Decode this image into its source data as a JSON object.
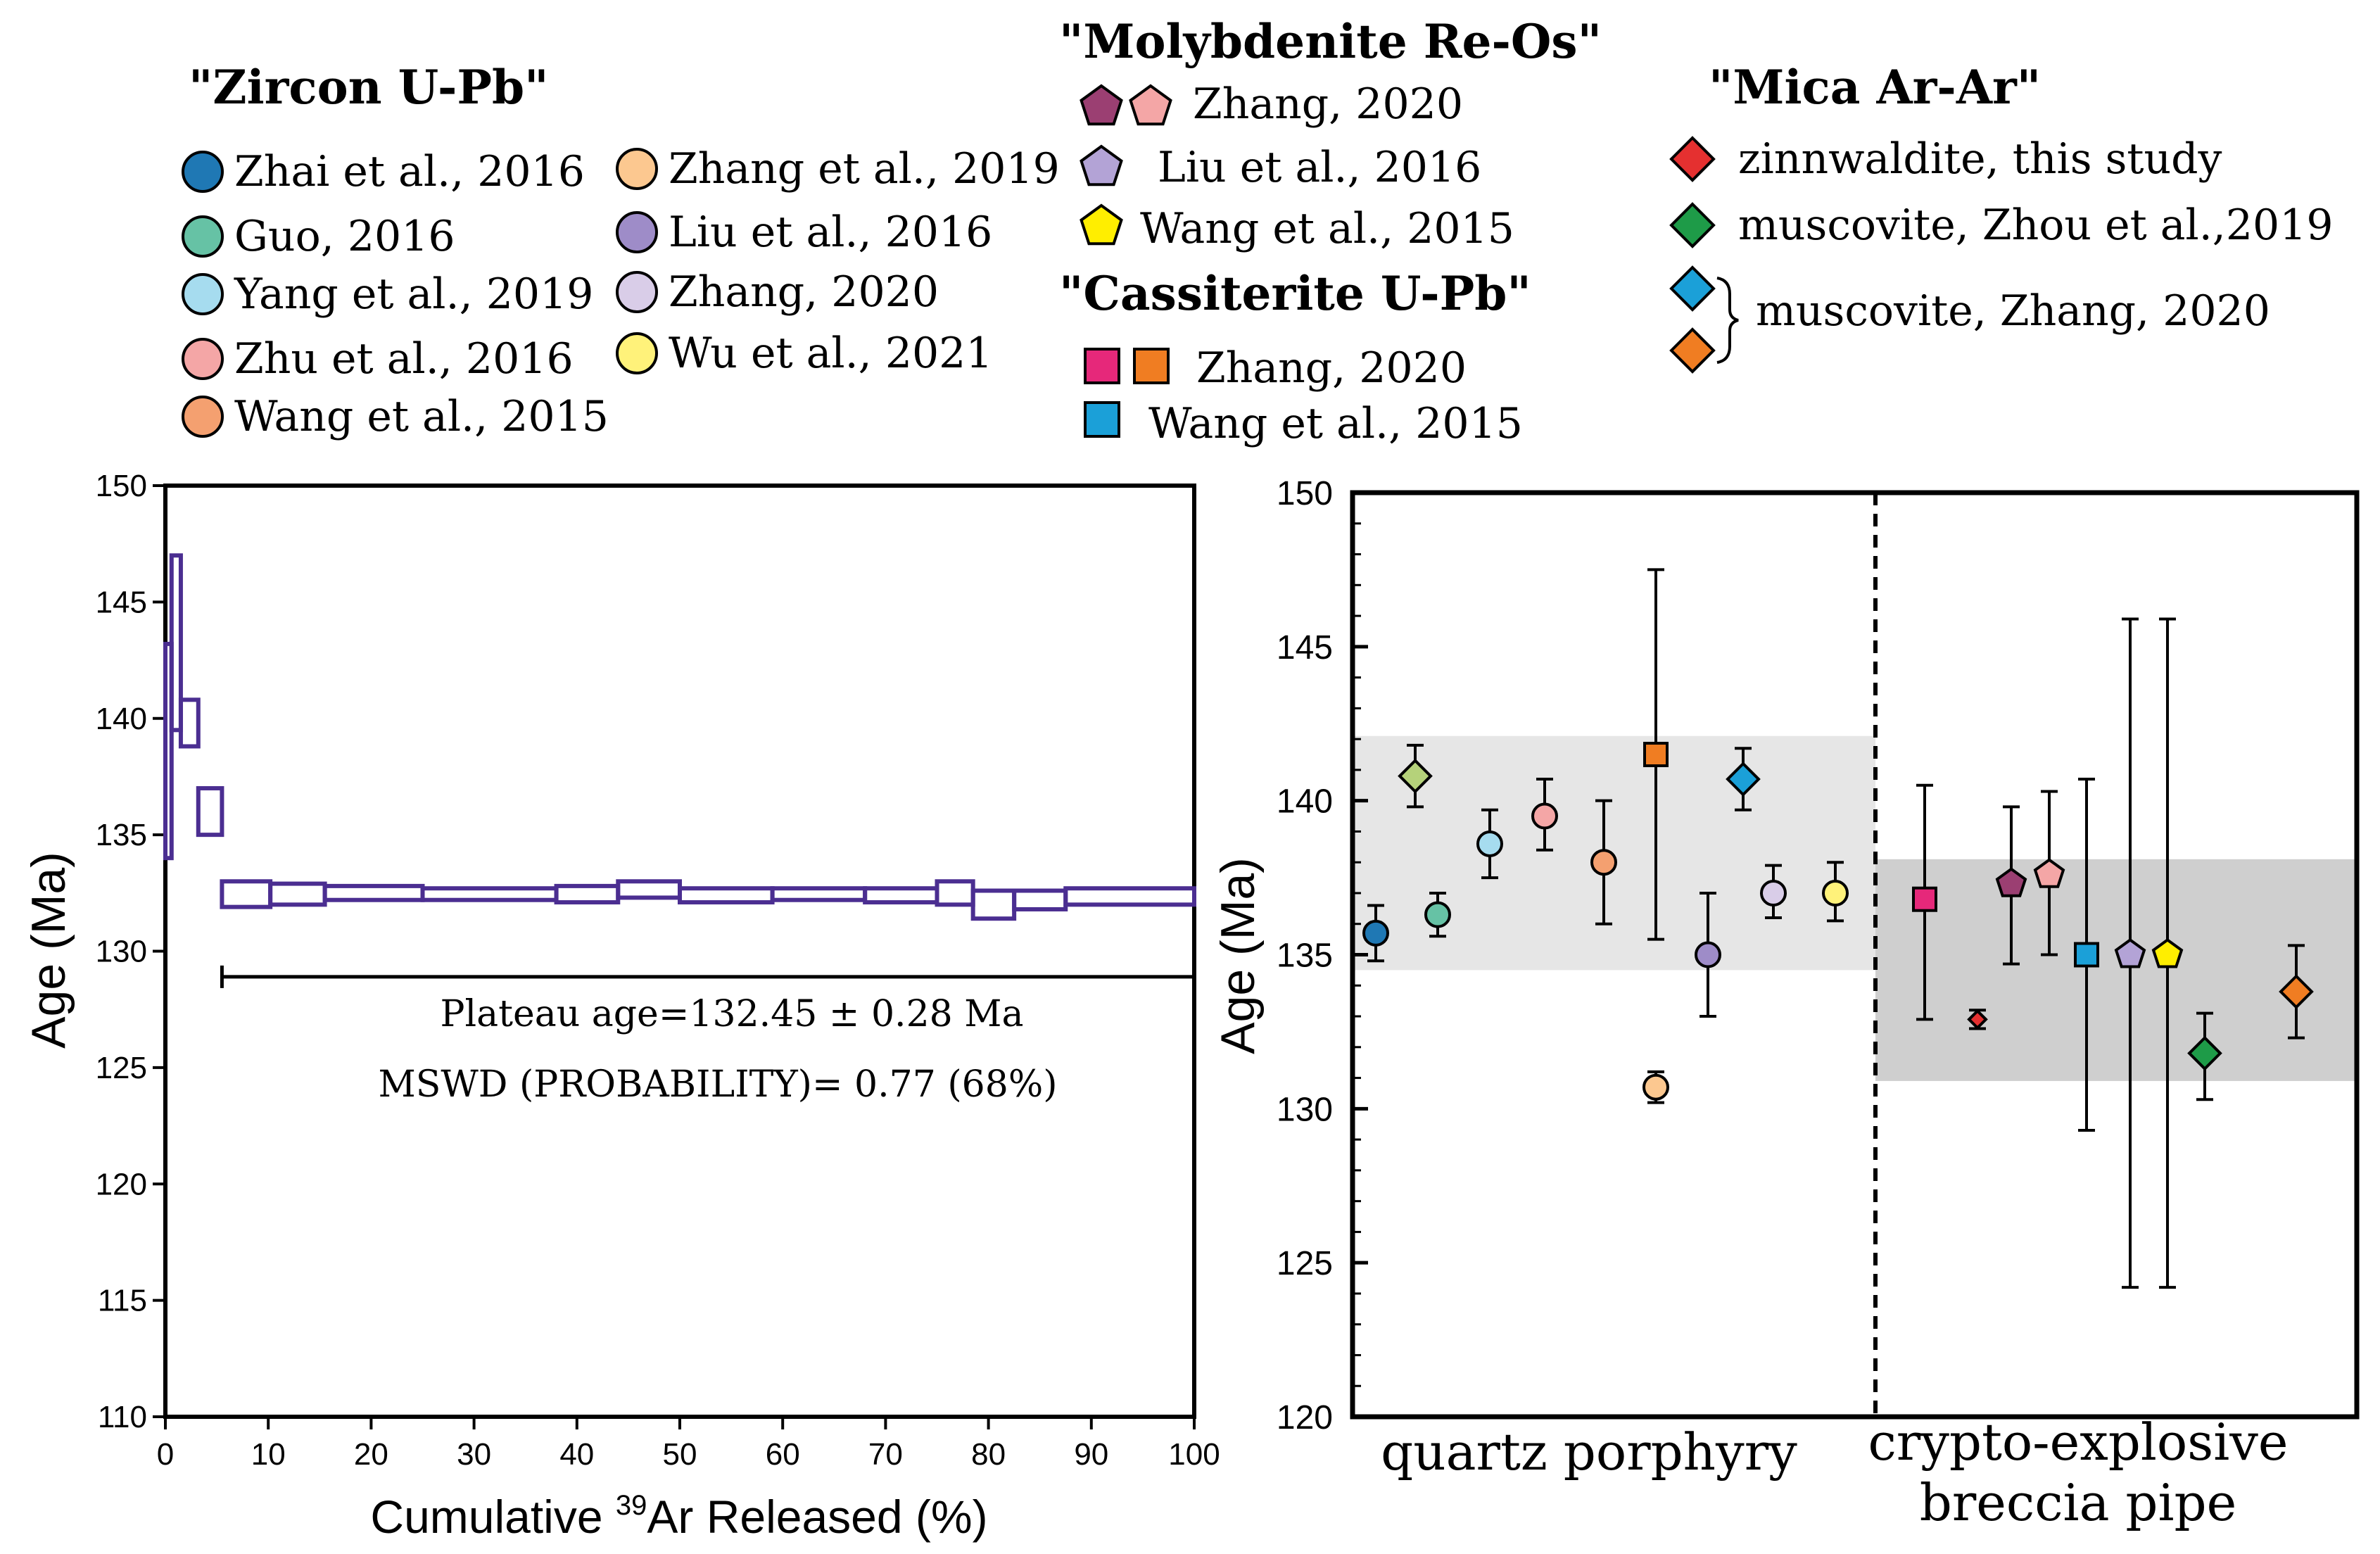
{
  "legend": {
    "zircon": {
      "title": "\"Zircon U-Pb\"",
      "items": [
        {
          "label": "Zhai et al., 2016",
          "color": "#1f78b4"
        },
        {
          "label": "Guo, 2016",
          "color": "#66c2a5"
        },
        {
          "label": "Yang et al., 2019",
          "color": "#a6dcef"
        },
        {
          "label": "Zhu et al., 2016",
          "color": "#f4a6a6"
        },
        {
          "label": "Wang et al., 2015",
          "color": "#f4a070"
        },
        {
          "label": "Zhang et al., 2019",
          "color": "#fcc890"
        },
        {
          "label": "Liu et al., 2016",
          "color": "#9e8cc8"
        },
        {
          "label": "Zhang, 2020",
          "color": "#d9cde8"
        },
        {
          "label": "Wu et al., 2021",
          "color": "#fff27a"
        }
      ]
    },
    "molybdenite": {
      "title": "\"Molybdenite Re-Os\"",
      "items": [
        {
          "label": "Zhang, 2020",
          "colors": [
            "#9b3f72",
            "#f4a6a6"
          ],
          "icon": "pentagon-icon"
        },
        {
          "label": "Liu et al., 2016",
          "colors": [
            "#b3a3d6"
          ],
          "icon": "pentagon-icon"
        },
        {
          "label": "Wang et al., 2015",
          "colors": [
            "#ffee00"
          ],
          "icon": "pentagon-icon"
        }
      ]
    },
    "cassiterite": {
      "title": "\"Cassiterite U-Pb\"",
      "items": [
        {
          "label": "Zhang, 2020",
          "colors": [
            "#e6287a",
            "#f07d22"
          ],
          "icon": "square-icon"
        },
        {
          "label": "Wang et al., 2015",
          "colors": [
            "#1ba0d8"
          ],
          "icon": "square-icon"
        }
      ]
    },
    "mica": {
      "title": "\"Mica Ar-Ar\"",
      "items": [
        {
          "label": "zinnwaldite, this study",
          "colors": [
            "#e53030"
          ],
          "icon": "diamond-icon"
        },
        {
          "label": "muscovite, Zhou et al.,2019",
          "colors": [
            "#1e9b48"
          ],
          "icon": "diamond-icon"
        },
        {
          "label": "muscovite, Zhang, 2020",
          "colors": [
            "#1ba0d8",
            "#f07d22"
          ],
          "icon": "diamond-icon"
        }
      ]
    }
  },
  "chart_data": [
    {
      "type": "step",
      "name": "Ar-Ar age spectrum",
      "xlabel_prefix": "Cumulative ",
      "xlabel_sup": "39",
      "xlabel_suffix": "Ar Released (%)",
      "ylabel": "Age (Ma)",
      "xlim": [
        0,
        100
      ],
      "ylim": [
        110,
        150
      ],
      "xticks": [
        0,
        10,
        20,
        30,
        40,
        50,
        60,
        70,
        80,
        90,
        100
      ],
      "yticks": [
        110,
        115,
        120,
        125,
        130,
        135,
        140,
        145,
        150
      ],
      "steps": [
        {
          "x0": 0.0,
          "x1": 0.6,
          "lo": 134.0,
          "hi": 143.2
        },
        {
          "x0": 0.6,
          "x1": 1.5,
          "lo": 139.5,
          "hi": 147.0
        },
        {
          "x0": 1.5,
          "x1": 3.2,
          "lo": 138.8,
          "hi": 140.8
        },
        {
          "x0": 3.2,
          "x1": 5.5,
          "lo": 135.0,
          "hi": 137.0
        },
        {
          "x0": 5.5,
          "x1": 10.2,
          "lo": 131.9,
          "hi": 133.0
        },
        {
          "x0": 10.2,
          "x1": 15.5,
          "lo": 132.0,
          "hi": 132.9
        },
        {
          "x0": 15.5,
          "x1": 25.0,
          "lo": 132.2,
          "hi": 132.8
        },
        {
          "x0": 25.0,
          "x1": 38.0,
          "lo": 132.2,
          "hi": 132.7
        },
        {
          "x0": 38.0,
          "x1": 44.0,
          "lo": 132.1,
          "hi": 132.8
        },
        {
          "x0": 44.0,
          "x1": 50.0,
          "lo": 132.3,
          "hi": 133.0
        },
        {
          "x0": 50.0,
          "x1": 59.0,
          "lo": 132.1,
          "hi": 132.7
        },
        {
          "x0": 59.0,
          "x1": 68.0,
          "lo": 132.2,
          "hi": 132.7
        },
        {
          "x0": 68.0,
          "x1": 75.0,
          "lo": 132.1,
          "hi": 132.7
        },
        {
          "x0": 75.0,
          "x1": 78.5,
          "lo": 132.0,
          "hi": 133.0
        },
        {
          "x0": 78.5,
          "x1": 82.5,
          "lo": 131.4,
          "hi": 132.6
        },
        {
          "x0": 82.5,
          "x1": 87.5,
          "lo": 131.8,
          "hi": 132.6
        },
        {
          "x0": 87.5,
          "x1": 100.0,
          "lo": 132.0,
          "hi": 132.7
        }
      ],
      "plateau": {
        "x0": 5.5,
        "x1": 100,
        "y": 128.9
      },
      "annotations": [
        "Plateau age=132.45 ± 0.28 Ma",
        "MSWD (PROBABILITY)= 0.77 (68%)"
      ],
      "line_color": "#4b2e91"
    },
    {
      "type": "scatter_errorbar",
      "name": "compilation of ages",
      "ylabel": "Age (Ma)",
      "ylim": [
        120,
        150
      ],
      "yticks": [
        120,
        125,
        130,
        135,
        140,
        145,
        150
      ],
      "groups": [
        {
          "label": "quartz porphyry",
          "band": [
            134.5,
            142.1
          ],
          "band_color": "#e6e6e6"
        },
        {
          "label_line1": "crypto-explosive",
          "label_line2": "breccia pipe",
          "band": [
            130.9,
            138.1
          ],
          "band_color": "#cfcfcf"
        }
      ],
      "points": [
        {
          "group": 0,
          "pos": 1,
          "shape": "circle",
          "color": "#1f78b4",
          "y": 135.7,
          "lo": 134.8,
          "hi": 136.6
        },
        {
          "group": 0,
          "pos": 2,
          "shape": "diamond",
          "color": "#b5d27a",
          "y": 140.8,
          "lo": 139.8,
          "hi": 141.8
        },
        {
          "group": 0,
          "pos": 3,
          "shape": "circle",
          "color": "#66c2a5",
          "y": 136.3,
          "lo": 135.6,
          "hi": 137.0
        },
        {
          "group": 0,
          "pos": 4,
          "shape": "circle",
          "color": "#a6dcef",
          "y": 138.6,
          "lo": 137.5,
          "hi": 139.7
        },
        {
          "group": 0,
          "pos": 5,
          "shape": "circle",
          "color": "#f4a6a6",
          "y": 139.5,
          "lo": 138.4,
          "hi": 140.7
        },
        {
          "group": 0,
          "pos": 6,
          "shape": "circle",
          "color": "#f4a070",
          "y": 138.0,
          "lo": 136.0,
          "hi": 140.0
        },
        {
          "group": 0,
          "pos": 7,
          "shape": "circle",
          "color": "#fcc890",
          "y": 130.7,
          "lo": 130.2,
          "hi": 131.2
        },
        {
          "group": 0,
          "pos": 7,
          "shape": "square",
          "color": "#f07d22",
          "y": 141.5,
          "lo": 135.5,
          "hi": 147.5
        },
        {
          "group": 0,
          "pos": 8,
          "shape": "diamond",
          "color": "#1ba0d8",
          "y": 140.7,
          "lo": 139.7,
          "hi": 141.7
        },
        {
          "group": 0,
          "pos": 9,
          "shape": "circle",
          "color": "#9e8cc8",
          "y": 135.0,
          "lo": 133.0,
          "hi": 137.0
        },
        {
          "group": 0,
          "pos": 10,
          "shape": "circle",
          "color": "#d9cde8",
          "y": 137.0,
          "lo": 136.2,
          "hi": 137.9
        },
        {
          "group": 0,
          "pos": 11,
          "shape": "circle",
          "color": "#fff27a",
          "y": 137.0,
          "lo": 136.1,
          "hi": 138.0
        },
        {
          "group": 1,
          "pos": 1,
          "shape": "square",
          "color": "#e6287a",
          "y": 136.8,
          "lo": 132.9,
          "hi": 140.5
        },
        {
          "group": 1,
          "pos": 2,
          "shape": "diamond_small",
          "color": "#e53030",
          "y": 132.9,
          "lo": 132.6,
          "hi": 133.2
        },
        {
          "group": 1,
          "pos": 3,
          "shape": "pentagon",
          "color": "#9b3f72",
          "y": 137.3,
          "lo": 134.7,
          "hi": 139.8
        },
        {
          "group": 1,
          "pos": 4,
          "shape": "pentagon",
          "color": "#f4a6a6",
          "y": 137.6,
          "lo": 135.0,
          "hi": 140.3
        },
        {
          "group": 1,
          "pos": 5,
          "shape": "square",
          "color": "#1ba0d8",
          "y": 135.0,
          "lo": 129.3,
          "hi": 140.7
        },
        {
          "group": 1,
          "pos": 6,
          "shape": "pentagon",
          "color": "#b3a3d6",
          "y": 135.0,
          "lo": 124.2,
          "hi": 145.9
        },
        {
          "group": 1,
          "pos": 7,
          "shape": "pentagon",
          "color": "#ffee00",
          "y": 135.0,
          "lo": 124.2,
          "hi": 145.9
        },
        {
          "group": 1,
          "pos": 8,
          "shape": "diamond",
          "color": "#1e9b48",
          "y": 131.8,
          "lo": 130.3,
          "hi": 133.1
        },
        {
          "group": 1,
          "pos": 9,
          "shape": "diamond",
          "color": "#f07d22",
          "y": 133.8,
          "lo": 132.3,
          "hi": 135.3
        }
      ]
    }
  ]
}
